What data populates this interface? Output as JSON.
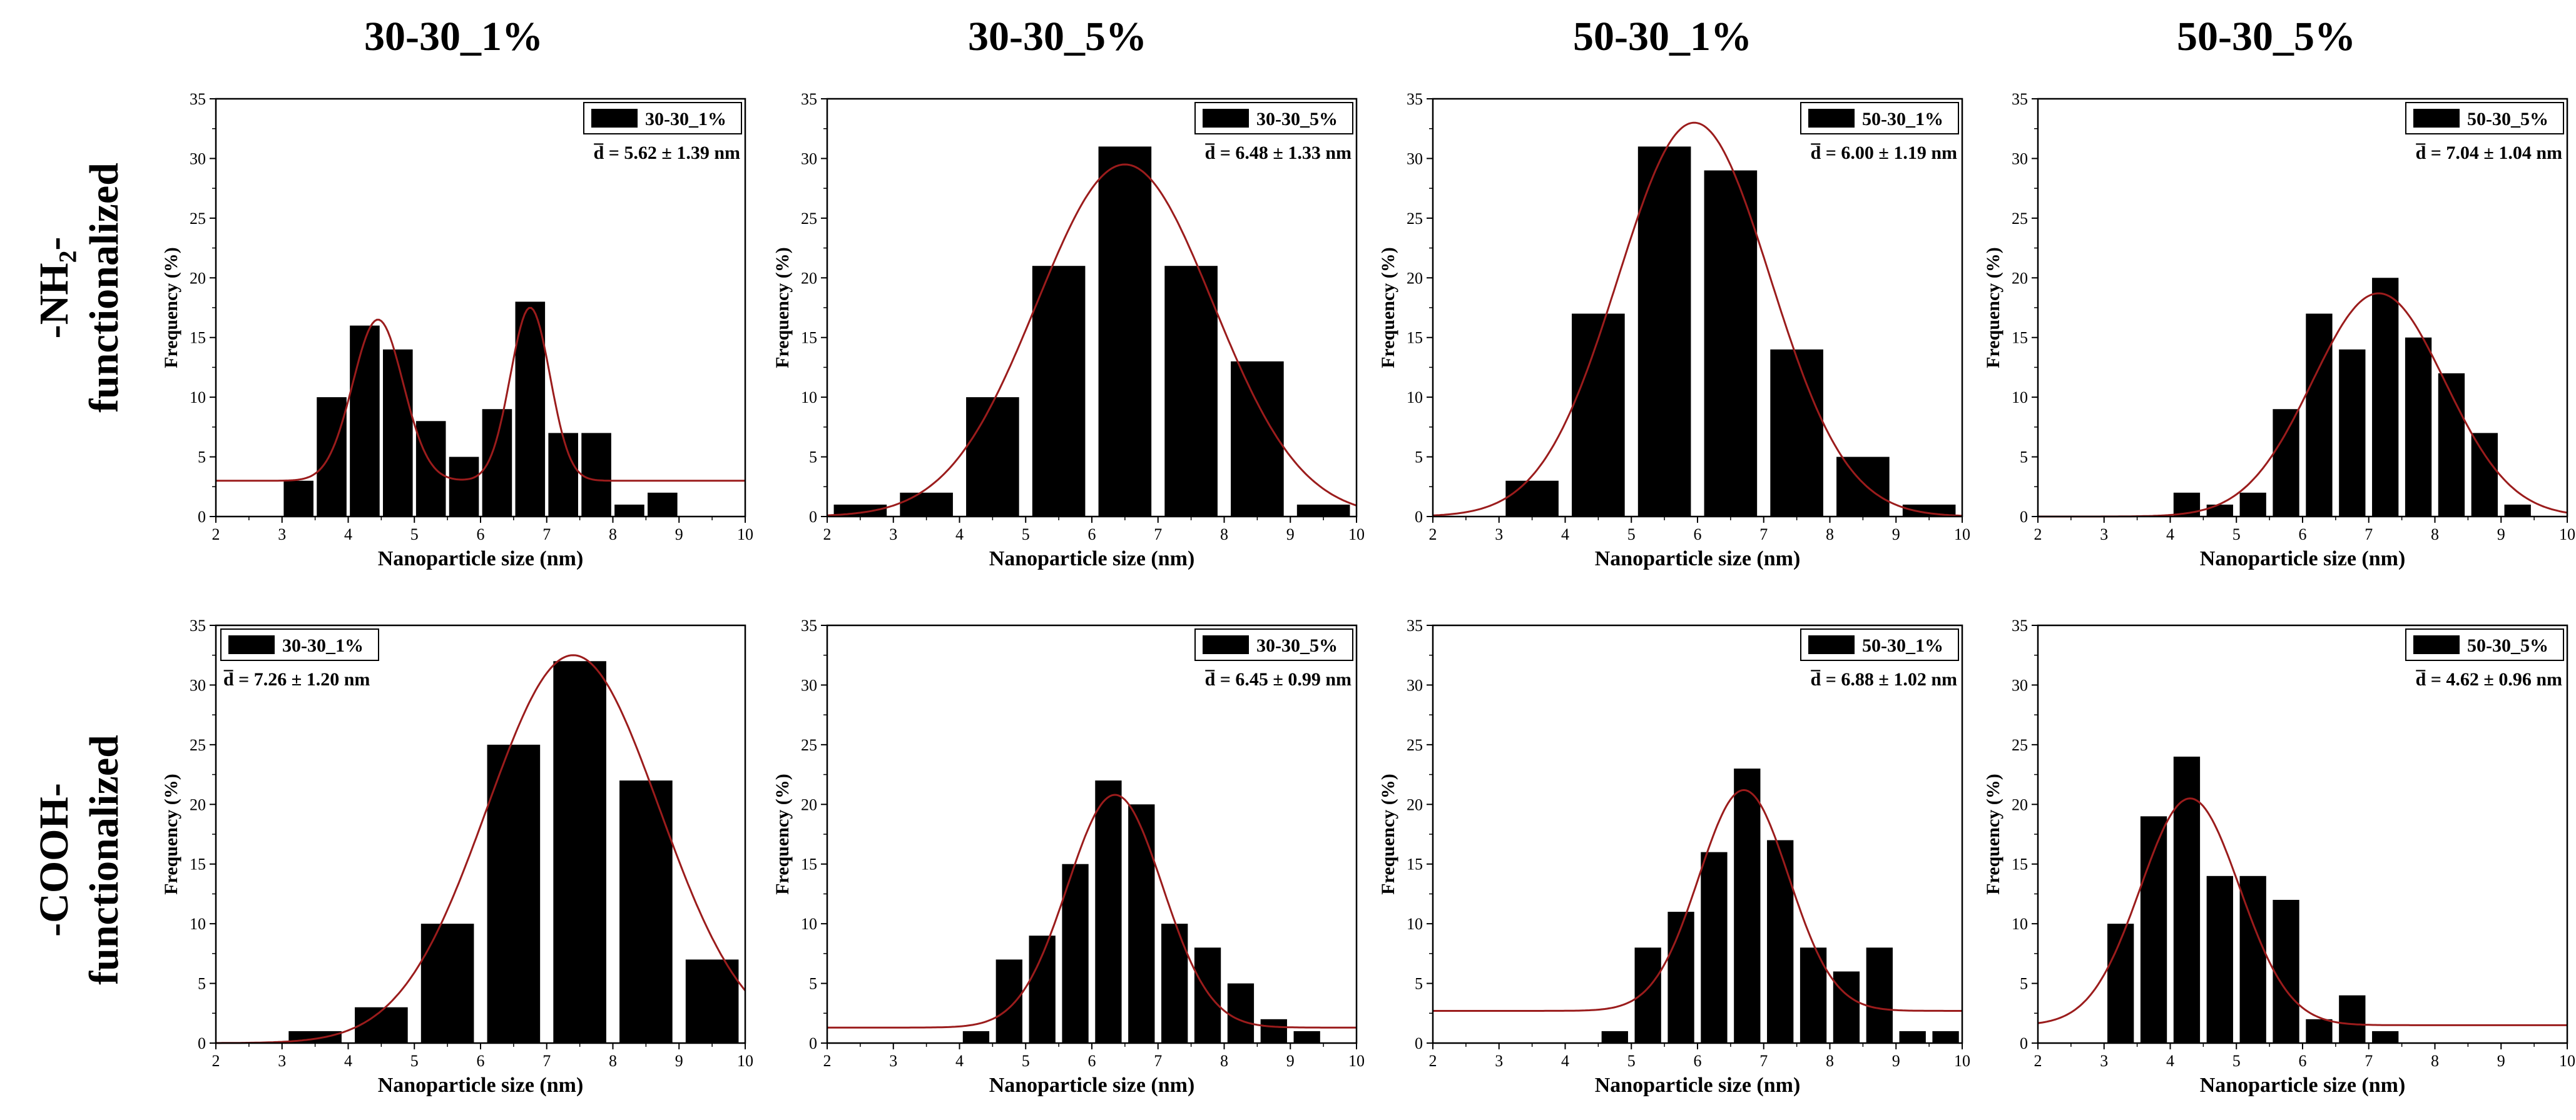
{
  "column_titles": [
    "30-30_1%",
    "30-30_5%",
    "50-30_1%",
    "50-30_5%"
  ],
  "row_labels": [
    {
      "line1": "-NH₂-",
      "line2": "functionalized"
    },
    {
      "line1": "-COOH-",
      "line2": "functionalized"
    }
  ],
  "colors": {
    "bars": "#000000",
    "fit": "#9b1c1c",
    "axis": "#000000",
    "background": "#ffffff"
  },
  "chart_data": [
    {
      "type": "bar",
      "row": 0,
      "col": 0,
      "legend": "30-30_1%",
      "stat": "d̅ = 5.62 ± 1.39 nm",
      "legend_pos": "top-right",
      "xlabel": "Nanoparticle size (nm)",
      "ylabel": "Frequency (%)",
      "xlim": [
        2,
        10
      ],
      "ylim": [
        0,
        35
      ],
      "xticks": [
        2,
        3,
        4,
        5,
        6,
        7,
        8,
        9,
        10
      ],
      "yticks": [
        0,
        5,
        10,
        15,
        20,
        25,
        30,
        35
      ],
      "bar_width": 0.45,
      "x": [
        3.25,
        3.75,
        4.25,
        4.75,
        5.25,
        5.75,
        6.25,
        6.75,
        7.25,
        7.75,
        8.25,
        8.75
      ],
      "values": [
        3,
        10,
        16,
        14,
        8,
        5,
        9,
        18,
        7,
        7,
        1,
        2
      ],
      "fit": {
        "baseline": 3,
        "peaks": [
          {
            "amp": 13.5,
            "center": 4.45,
            "sigma": 0.38
          },
          {
            "amp": 14.5,
            "center": 6.75,
            "sigma": 0.3
          }
        ]
      }
    },
    {
      "type": "bar",
      "row": 0,
      "col": 1,
      "legend": "30-30_5%",
      "stat": "d̅ = 6.48 ± 1.33 nm",
      "legend_pos": "top-right",
      "xlabel": "Nanoparticle size (nm)",
      "ylabel": "Frequency (%)",
      "xlim": [
        2,
        10
      ],
      "ylim": [
        0,
        35
      ],
      "xticks": [
        2,
        3,
        4,
        5,
        6,
        7,
        8,
        9,
        10
      ],
      "yticks": [
        0,
        5,
        10,
        15,
        20,
        25,
        30,
        35
      ],
      "bar_width": 0.8,
      "x": [
        2.5,
        3.5,
        4.5,
        5.5,
        6.5,
        7.5,
        8.5,
        9.5
      ],
      "values": [
        1,
        2,
        10,
        21,
        31,
        21,
        13,
        1
      ],
      "fit": {
        "baseline": 0,
        "peaks": [
          {
            "amp": 29.5,
            "center": 6.5,
            "sigma": 1.33
          }
        ]
      }
    },
    {
      "type": "bar",
      "row": 0,
      "col": 2,
      "legend": "50-30_1%",
      "stat": "d̅ = 6.00 ± 1.19 nm",
      "legend_pos": "top-right",
      "xlabel": "Nanoparticle size (nm)",
      "ylabel": "Frequency (%)",
      "xlim": [
        2,
        10
      ],
      "ylim": [
        0,
        35
      ],
      "xticks": [
        2,
        3,
        4,
        5,
        6,
        7,
        8,
        9,
        10
      ],
      "yticks": [
        0,
        5,
        10,
        15,
        20,
        25,
        30,
        35
      ],
      "bar_width": 0.8,
      "x": [
        3.5,
        4.5,
        5.5,
        6.5,
        7.5,
        8.5,
        9.5
      ],
      "values": [
        3,
        17,
        31,
        29,
        14,
        5,
        1
      ],
      "fit": {
        "baseline": 0,
        "peaks": [
          {
            "amp": 33,
            "center": 5.95,
            "sigma": 1.15
          }
        ]
      }
    },
    {
      "type": "bar",
      "row": 0,
      "col": 3,
      "legend": "50-30_5%",
      "stat": "d̅ = 7.04 ± 1.04 nm",
      "legend_pos": "top-right",
      "xlabel": "Nanoparticle size (nm)",
      "ylabel": "Frequency (%)",
      "xlim": [
        2,
        10
      ],
      "ylim": [
        0,
        35
      ],
      "xticks": [
        2,
        3,
        4,
        5,
        6,
        7,
        8,
        9,
        10
      ],
      "yticks": [
        0,
        5,
        10,
        15,
        20,
        25,
        30,
        35
      ],
      "bar_width": 0.4,
      "x": [
        4.25,
        4.75,
        5.25,
        5.75,
        6.25,
        6.75,
        7.25,
        7.75,
        8.25,
        8.75,
        9.25
      ],
      "values": [
        2,
        1,
        2,
        9,
        17,
        14,
        20,
        15,
        12,
        7,
        1
      ],
      "fit": {
        "baseline": 0,
        "peaks": [
          {
            "amp": 18.7,
            "center": 7.15,
            "sigma": 1.0
          }
        ]
      }
    },
    {
      "type": "bar",
      "row": 1,
      "col": 0,
      "legend": "30-30_1%",
      "stat": "d̅ = 7.26 ± 1.20 nm",
      "legend_pos": "top-left",
      "xlabel": "Nanoparticle size (nm)",
      "ylabel": "Frequency (%)",
      "xlim": [
        2,
        10
      ],
      "ylim": [
        0,
        35
      ],
      "xticks": [
        2,
        3,
        4,
        5,
        6,
        7,
        8,
        9,
        10
      ],
      "yticks": [
        0,
        5,
        10,
        15,
        20,
        25,
        30,
        35
      ],
      "bar_width": 0.8,
      "x": [
        3.5,
        4.5,
        5.5,
        6.5,
        7.5,
        8.5,
        9.5
      ],
      "values": [
        1,
        3,
        10,
        25,
        32,
        22,
        7
      ],
      "fit": {
        "baseline": 0,
        "peaks": [
          {
            "amp": 32.5,
            "center": 7.4,
            "sigma": 1.3
          }
        ]
      }
    },
    {
      "type": "bar",
      "row": 1,
      "col": 1,
      "legend": "30-30_5%",
      "stat": "d̅ = 6.45 ± 0.99 nm",
      "legend_pos": "top-right",
      "xlabel": "Nanoparticle size (nm)",
      "ylabel": "Frequency (%)",
      "xlim": [
        2,
        10
      ],
      "ylim": [
        0,
        35
      ],
      "xticks": [
        2,
        3,
        4,
        5,
        6,
        7,
        8,
        9,
        10
      ],
      "yticks": [
        0,
        5,
        10,
        15,
        20,
        25,
        30,
        35
      ],
      "bar_width": 0.4,
      "x": [
        4.25,
        4.75,
        5.25,
        5.75,
        6.25,
        6.75,
        7.25,
        7.75,
        8.25,
        8.75,
        9.25
      ],
      "values": [
        1,
        7,
        9,
        15,
        22,
        20,
        10,
        8,
        5,
        2,
        1
      ],
      "fit": {
        "baseline": 1.3,
        "peaks": [
          {
            "amp": 19.5,
            "center": 6.35,
            "sigma": 0.72
          }
        ]
      }
    },
    {
      "type": "bar",
      "row": 1,
      "col": 2,
      "legend": "50-30_1%",
      "stat": "d̅ = 6.88 ± 1.02 nm",
      "legend_pos": "top-right",
      "xlabel": "Nanoparticle size (nm)",
      "ylabel": "Frequency (%)",
      "xlim": [
        2,
        10
      ],
      "ylim": [
        0,
        35
      ],
      "xticks": [
        2,
        3,
        4,
        5,
        6,
        7,
        8,
        9,
        10
      ],
      "yticks": [
        0,
        5,
        10,
        15,
        20,
        25,
        30,
        35
      ],
      "bar_width": 0.4,
      "x": [
        4.75,
        5.25,
        5.75,
        6.25,
        6.75,
        7.25,
        7.75,
        8.25,
        8.75,
        9.25,
        9.75
      ],
      "values": [
        1,
        8,
        11,
        16,
        23,
        17,
        8,
        6,
        8,
        1,
        1
      ],
      "fit": {
        "baseline": 2.7,
        "peaks": [
          {
            "amp": 18.5,
            "center": 6.7,
            "sigma": 0.68
          }
        ]
      }
    },
    {
      "type": "bar",
      "row": 1,
      "col": 3,
      "legend": "50-30_5%",
      "stat": "d̅ = 4.62 ± 0.96 nm",
      "legend_pos": "top-right",
      "xlabel": "Nanoparticle size (nm)",
      "ylabel": "Frequency (%)",
      "xlim": [
        2,
        10
      ],
      "ylim": [
        0,
        35
      ],
      "xticks": [
        2,
        3,
        4,
        5,
        6,
        7,
        8,
        9,
        10
      ],
      "yticks": [
        0,
        5,
        10,
        15,
        20,
        25,
        30,
        35
      ],
      "bar_width": 0.4,
      "x": [
        3.25,
        3.75,
        4.25,
        4.75,
        5.25,
        5.75,
        6.25,
        6.75,
        7.25
      ],
      "values": [
        10,
        19,
        24,
        14,
        14,
        12,
        2,
        4,
        1
      ],
      "fit": {
        "baseline": 1.5,
        "peaks": [
          {
            "amp": 19,
            "center": 4.3,
            "sigma": 0.75
          }
        ]
      }
    }
  ]
}
